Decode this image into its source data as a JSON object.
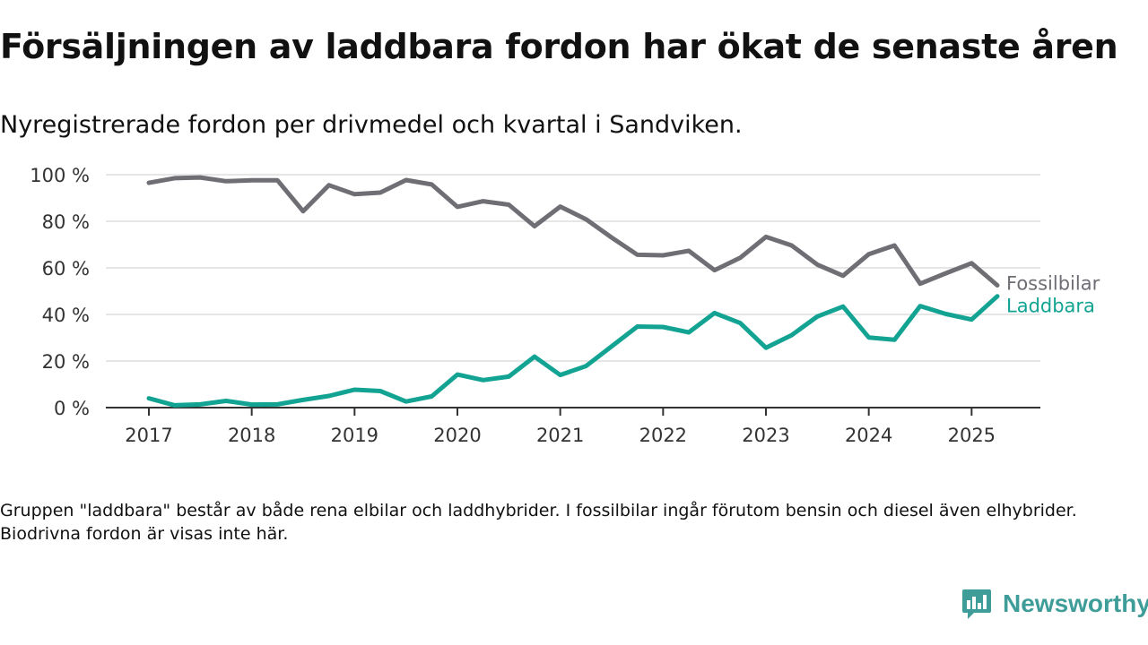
{
  "header": {
    "title": "Försäljningen av laddbara fordon har ökat de senaste åren",
    "subtitle": "Nyregistrerade fordon per drivmedel och kvartal i Sandviken."
  },
  "footnote": "Gruppen \"laddbara\" består av både rena elbilar och laddhybrider. I fossilbilar ingår förutom bensin och diesel även elhybrider. Biodrivna fordon är visas inte här.",
  "brand": {
    "name": "Newsworthy",
    "color": "#3f9d99"
  },
  "chart_data": {
    "type": "line",
    "title": "Försäljningen av laddbara fordon har ökat de senaste åren",
    "subtitle": "Nyregistrerade fordon per drivmedel och kvartal i Sandviken.",
    "xlabel": "",
    "ylabel": "",
    "x_ticks": [
      "2017",
      "2018",
      "2019",
      "2020",
      "2021",
      "2022",
      "2023",
      "2024",
      "2025"
    ],
    "y_ticks": [
      "0 %",
      "20 %",
      "40 %",
      "60 %",
      "80 %",
      "100 %"
    ],
    "ylim": [
      0,
      100
    ],
    "xlim": [
      2017.0,
      2025.25
    ],
    "grid": "horizontal",
    "legend": "inline labels at line ends",
    "x": [
      2017.0,
      2017.25,
      2017.5,
      2017.75,
      2018.0,
      2018.25,
      2018.5,
      2018.75,
      2019.0,
      2019.25,
      2019.5,
      2019.75,
      2020.0,
      2020.25,
      2020.5,
      2020.75,
      2021.0,
      2021.25,
      2021.5,
      2021.75,
      2022.0,
      2022.25,
      2022.5,
      2022.75,
      2023.0,
      2023.25,
      2023.5,
      2023.75,
      2024.0,
      2024.25,
      2024.5,
      2024.75,
      2025.0,
      2025.25
    ],
    "series": [
      {
        "name": "Fossilbilar",
        "color": "#6f6e74",
        "values": [
          96.5,
          98.5,
          98.8,
          97.2,
          97.6,
          97.6,
          84.3,
          95.5,
          91.6,
          92.3,
          97.7,
          95.8,
          86.2,
          88.6,
          87.1,
          77.9,
          86.3,
          80.9,
          73.0,
          65.6,
          65.4,
          67.3,
          59.0,
          64.3,
          73.3,
          69.6,
          61.4,
          56.6,
          65.9,
          69.6,
          53.2,
          57.7,
          62.0,
          52.5
        ]
      },
      {
        "name": "Laddbara",
        "color": "#12a393",
        "values": [
          4.0,
          1.0,
          1.4,
          2.9,
          1.3,
          1.4,
          3.3,
          5.0,
          7.7,
          7.1,
          2.6,
          4.8,
          14.2,
          11.8,
          13.3,
          21.9,
          14.0,
          17.8,
          26.3,
          34.8,
          34.6,
          32.3,
          40.6,
          36.3,
          25.7,
          31.1,
          39.1,
          43.4,
          30.1,
          29.1,
          43.6,
          40.2,
          37.8,
          47.8
        ]
      }
    ]
  }
}
